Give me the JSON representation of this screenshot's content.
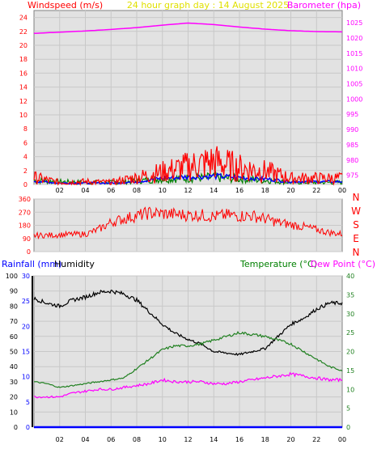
{
  "header": {
    "left": "Windspeed (m/s)",
    "center": "24 hour graph day : 14 August 2025",
    "right": "Barometer (hpa)"
  },
  "colors": {
    "windspeed": "#ff0000",
    "wind_avg": "#0000ff",
    "wind_green": "#008000",
    "barometer": "#ff00ff",
    "direction": "#ff0000",
    "rainfall": "#0000ff",
    "humidity": "#000000",
    "temperature": "#208020",
    "dewpoint": "#ff00ff",
    "title": "#e0e000",
    "panel_bg": "#e2e2e2"
  },
  "chart_data": [
    {
      "type": "line",
      "name": "wind-barometer",
      "x_ticks": [
        "02",
        "04",
        "06",
        "08",
        "10",
        "12",
        "14",
        "16",
        "18",
        "20",
        "22",
        "00"
      ],
      "y_left": {
        "label": "Windspeed (m/s)",
        "range": [
          0,
          25
        ],
        "ticks": [
          0,
          2,
          4,
          6,
          8,
          10,
          12,
          14,
          16,
          18,
          20,
          22,
          24
        ]
      },
      "y_right": {
        "label": "Barometer (hpa)",
        "range": [
          972,
          1029
        ],
        "ticks": [
          975,
          980,
          985,
          990,
          995,
          1000,
          1005,
          1010,
          1015,
          1020,
          1025
        ]
      },
      "x_hours": [
        0,
        2,
        4,
        6,
        8,
        10,
        12,
        14,
        16,
        18,
        20,
        22,
        24
      ],
      "barometer": [
        1021.5,
        1021.9,
        1022.3,
        1022.8,
        1023.4,
        1024.2,
        1024.9,
        1024.4,
        1023.6,
        1022.9,
        1022.4,
        1022.1,
        1022.0
      ],
      "windspeed_gust": [
        1.0,
        0.3,
        0.4,
        0.3,
        1.0,
        1.8,
        2.6,
        3.3,
        2.4,
        1.9,
        0.9,
        0.9,
        0.9
      ],
      "windspeed_avg": [
        0.5,
        0.2,
        0.2,
        0.2,
        0.4,
        0.9,
        1.1,
        1.2,
        1.0,
        0.8,
        0.4,
        0.4,
        0.4
      ],
      "windspeed_green": [
        0.6,
        0.4,
        0.3,
        0.3,
        0.5,
        0.8,
        0.9,
        1.0,
        0.8,
        0.6,
        0.3,
        0.3,
        0.3
      ]
    },
    {
      "type": "line",
      "name": "wind-direction",
      "x_hours": [
        0,
        1,
        2,
        3,
        4,
        5,
        6,
        7,
        8,
        9,
        10,
        11,
        12,
        13,
        14,
        15,
        16,
        17,
        18,
        19,
        20,
        21,
        22,
        23,
        24
      ],
      "direction_deg": [
        110,
        112,
        115,
        118,
        120,
        150,
        200,
        225,
        245,
        265,
        260,
        255,
        250,
        250,
        240,
        250,
        245,
        245,
        225,
        200,
        185,
        170,
        150,
        130,
        120
      ],
      "y_ticks": [
        0,
        90,
        180,
        270,
        360
      ],
      "compass": [
        "N",
        "W",
        "S",
        "E",
        "N"
      ]
    },
    {
      "type": "line",
      "name": "rain-humidity-temperature",
      "y_left_labels": [
        "Rainfall (mm)",
        "Humidity"
      ],
      "y_right_labels": [
        "Temperature (°C)",
        "Dew Point (°C)"
      ],
      "humidity_ticks": [
        0,
        10,
        20,
        30,
        40,
        50,
        60,
        70,
        80,
        90,
        100
      ],
      "rain_ticks": [
        0,
        5,
        10,
        15,
        20,
        25,
        30
      ],
      "temp_ticks": [
        0,
        5,
        10,
        15,
        20,
        25,
        30,
        35,
        40
      ],
      "x_hours": [
        0,
        1,
        2,
        3,
        4,
        5,
        6,
        7,
        8,
        9,
        10,
        11,
        12,
        13,
        14,
        15,
        16,
        17,
        18,
        19,
        20,
        21,
        22,
        23,
        24
      ],
      "humidity": [
        85,
        82,
        80,
        84,
        86,
        89,
        90,
        88,
        84,
        76,
        68,
        62,
        58,
        55,
        50,
        49,
        48,
        50,
        52,
        60,
        68,
        72,
        78,
        82,
        82
      ],
      "temperature": [
        12,
        11.5,
        10.5,
        11,
        11.5,
        12,
        12.5,
        13,
        15.5,
        18,
        20.5,
        21.5,
        21.5,
        22,
        23,
        24,
        25,
        24.5,
        24,
        23,
        22,
        20,
        18,
        16,
        15
      ],
      "dewpoint": [
        8,
        8,
        8,
        9,
        9.5,
        10,
        10,
        10.5,
        11,
        11.5,
        12.5,
        12,
        12,
        12,
        11.5,
        11.5,
        12,
        12.5,
        13,
        13.5,
        14,
        13.5,
        13,
        12.5,
        12.5
      ],
      "rainfall": [
        0,
        0,
        0,
        0,
        0,
        0,
        0,
        0,
        0,
        0,
        0,
        0,
        0,
        0,
        0,
        0,
        0,
        0,
        0,
        0,
        0,
        0,
        0,
        0,
        0
      ]
    }
  ]
}
